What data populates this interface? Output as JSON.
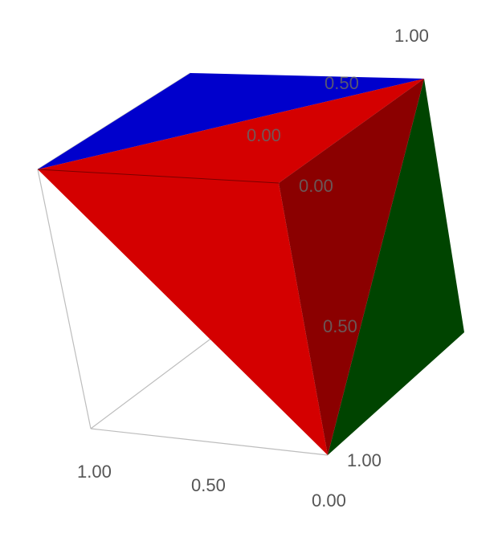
{
  "colors": {
    "blue_face": "#0000cc",
    "red_face": "#d40000",
    "dark_red_face": "#8b0000",
    "green_face": "#004400",
    "edge": "#bdbdbd",
    "label": "#555555"
  },
  "tick_labels": {
    "top_far": "1.00",
    "top_mid": "0.50",
    "top_near_upper": "0.00",
    "top_near_lower": "0.00",
    "right_mid": "0.50",
    "right_bottom": "1.00",
    "bottom_left": "1.00",
    "bottom_mid": "0.50",
    "bottom_right": "0.00"
  }
}
